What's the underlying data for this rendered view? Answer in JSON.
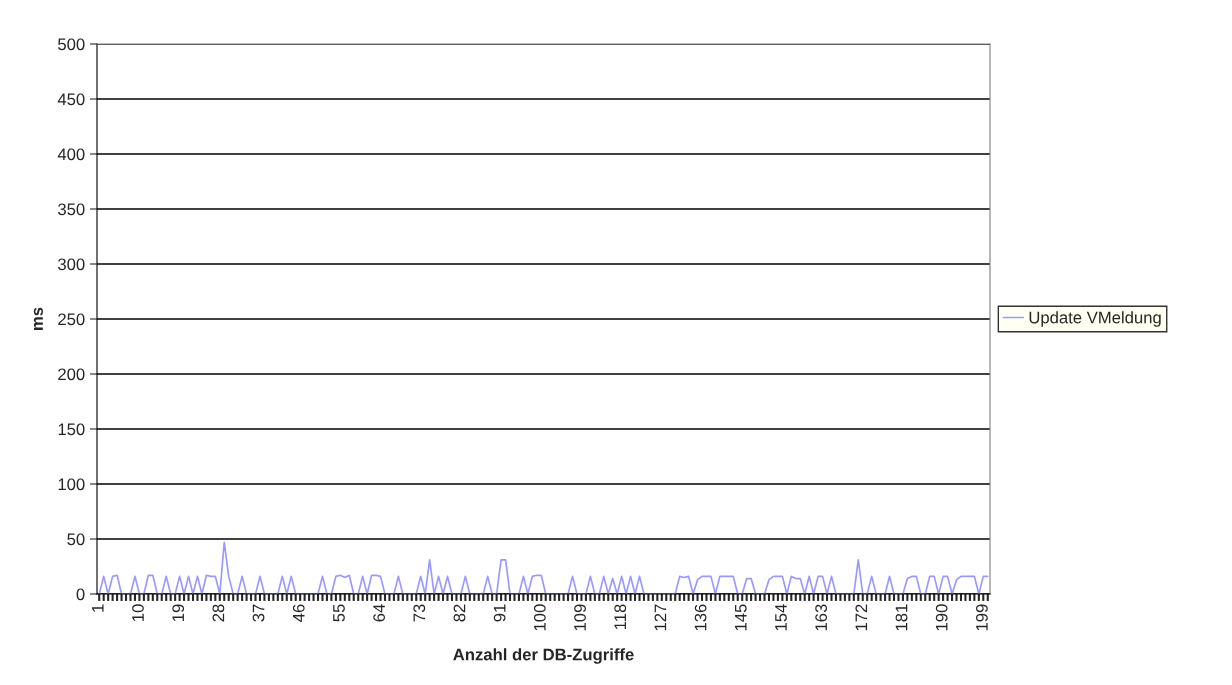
{
  "chart_data": {
    "type": "line",
    "xlabel": "Anzahl der DB-Zugriffe",
    "ylabel": "ms",
    "categories": [
      "1",
      null,
      null,
      null,
      null,
      null,
      null,
      null,
      null,
      "10",
      null,
      null,
      null,
      null,
      null,
      null,
      null,
      null,
      "19",
      null,
      null,
      null,
      null,
      null,
      null,
      null,
      null,
      "28",
      null,
      null,
      null,
      null,
      null,
      null,
      null,
      null,
      "37",
      null,
      null,
      null,
      null,
      null,
      null,
      null,
      null,
      "46",
      null,
      null,
      null,
      null,
      null,
      null,
      null,
      null,
      "55",
      null,
      null,
      null,
      null,
      null,
      null,
      null,
      null,
      "64",
      null,
      null,
      null,
      null,
      null,
      null,
      null,
      null,
      "73",
      null,
      null,
      null,
      null,
      null,
      null,
      null,
      null,
      "82",
      null,
      null,
      null,
      null,
      null,
      null,
      null,
      null,
      "91",
      null,
      null,
      null,
      null,
      null,
      null,
      null,
      null,
      "100",
      null,
      null,
      null,
      null,
      null,
      null,
      null,
      null,
      "109",
      null,
      null,
      null,
      null,
      null,
      null,
      null,
      null,
      "118",
      null,
      null,
      null,
      null,
      null,
      null,
      null,
      null,
      "127",
      null,
      null,
      null,
      null,
      null,
      null,
      null,
      null,
      "136",
      null,
      null,
      null,
      null,
      null,
      null,
      null,
      null,
      "145",
      null,
      null,
      null,
      null,
      null,
      null,
      null,
      null,
      "154",
      null,
      null,
      null,
      null,
      null,
      null,
      null,
      null,
      "163",
      null,
      null,
      null,
      null,
      null,
      null,
      null,
      null,
      "172",
      null,
      null,
      null,
      null,
      null,
      null,
      null,
      null,
      "181",
      null,
      null,
      null,
      null,
      null,
      null,
      null,
      null,
      "190",
      null,
      null,
      null,
      null,
      null,
      null,
      null,
      null,
      "199",
      null
    ],
    "series": [
      {
        "name": "Update VMeldung",
        "color": "#9999ff",
        "values": [
          0,
          16,
          0,
          16,
          17,
          0,
          0,
          0,
          16,
          0,
          0,
          17,
          17,
          0,
          0,
          16,
          0,
          0,
          16,
          0,
          16,
          0,
          16,
          0,
          17,
          16,
          16,
          0,
          47,
          16,
          0,
          0,
          16,
          0,
          0,
          0,
          16,
          0,
          0,
          0,
          0,
          16,
          0,
          16,
          0,
          0,
          0,
          0,
          0,
          0,
          16,
          0,
          0,
          16,
          17,
          15,
          17,
          0,
          0,
          16,
          0,
          17,
          17,
          16,
          0,
          0,
          0,
          16,
          0,
          0,
          0,
          0,
          16,
          0,
          31,
          0,
          16,
          0,
          16,
          0,
          0,
          0,
          16,
          0,
          0,
          0,
          0,
          16,
          0,
          0,
          31,
          31,
          0,
          0,
          0,
          16,
          0,
          16,
          17,
          17,
          0,
          0,
          0,
          0,
          0,
          0,
          16,
          0,
          0,
          0,
          16,
          0,
          0,
          16,
          0,
          14,
          0,
          16,
          0,
          16,
          0,
          16,
          0,
          0,
          0,
          0,
          0,
          0,
          0,
          0,
          16,
          15,
          16,
          0,
          13,
          16,
          16,
          16,
          0,
          16,
          16,
          16,
          16,
          0,
          0,
          14,
          14,
          0,
          0,
          0,
          13,
          16,
          16,
          16,
          0,
          16,
          14,
          14,
          0,
          16,
          0,
          16,
          16,
          0,
          16,
          0,
          0,
          0,
          0,
          0,
          31,
          0,
          0,
          16,
          0,
          0,
          0,
          16,
          0,
          0,
          0,
          14,
          16,
          16,
          0,
          0,
          16,
          16,
          0,
          16,
          16,
          0,
          13,
          16,
          16,
          16,
          16,
          0,
          16,
          16
        ]
      }
    ],
    "ylim": [
      0,
      500
    ],
    "yticks": [
      0,
      50,
      100,
      150,
      200,
      250,
      300,
      350,
      400,
      450,
      500
    ],
    "grid": "y",
    "legend": "right",
    "marker": "none",
    "line_style": "solid"
  }
}
